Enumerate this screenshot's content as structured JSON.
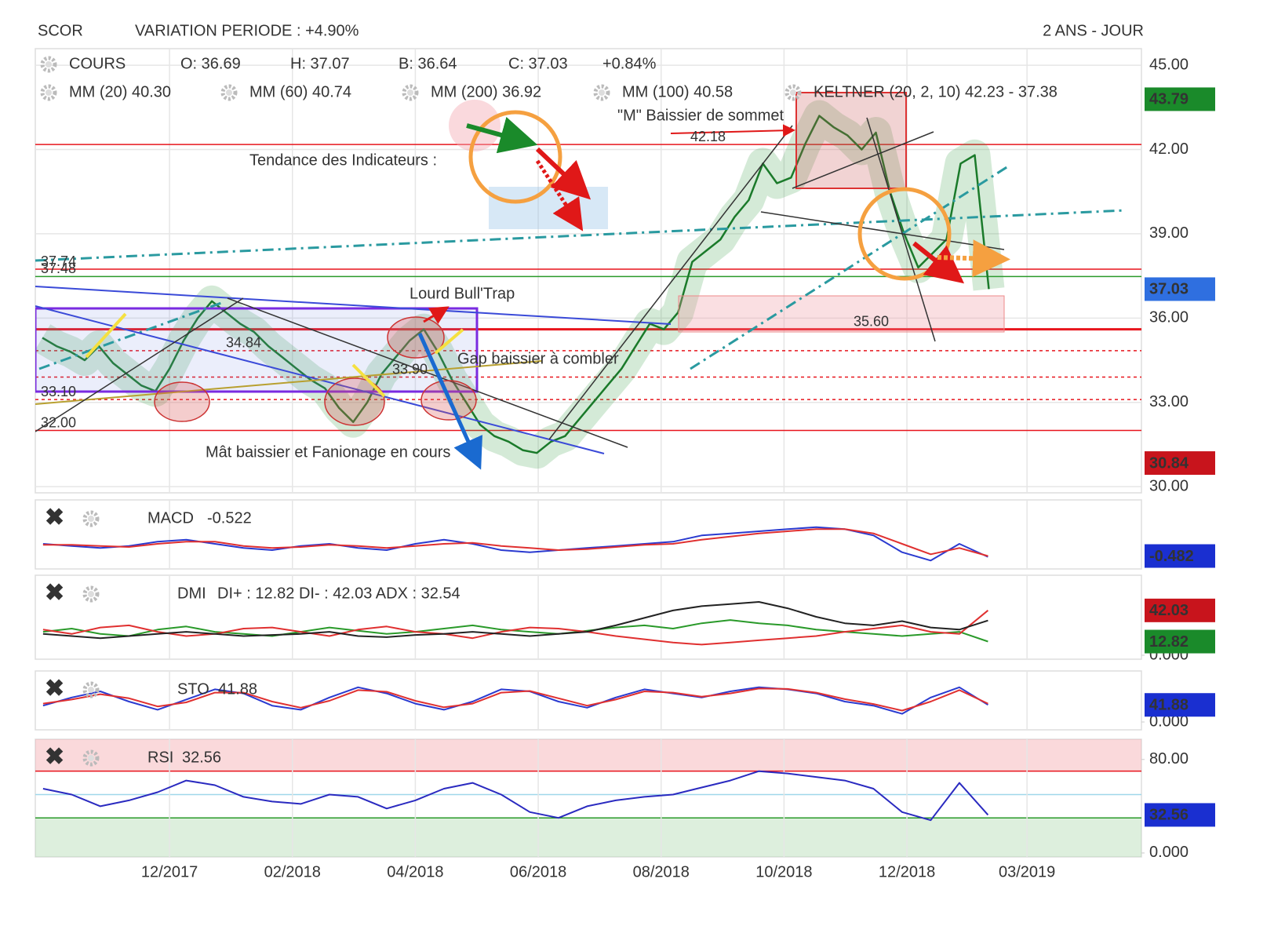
{
  "header": {
    "symbol": "SCOR",
    "variation": "VARIATION PERIODE : +4.90%",
    "period": "2 ANS - JOUR"
  },
  "chart_data": [
    {
      "type": "line",
      "info": [
        "COURS",
        "O: 36.69",
        "H: 37.07",
        "B: 36.64",
        "C: 37.03",
        "+0.84%"
      ],
      "indicators": [
        {
          "name": "MM (20) 40.30",
          "color": "#e8141c"
        },
        {
          "name": "MM (60) 40.74",
          "color": "#f0a020"
        },
        {
          "name": "MM (200) 36.92",
          "color": "#2a9a4a"
        },
        {
          "name": "MM (100) 40.58",
          "color": "#30c0d0"
        },
        {
          "name": "KELTNER (20, 2, 10) 42.23 - 37.38",
          "color": "#1a8a1a"
        }
      ],
      "xlim": [
        -0.5,
        77.8
      ],
      "xticks": [
        {
          "value": 9,
          "label": "12/2017"
        },
        {
          "value": 17.7,
          "label": "02/2018"
        },
        {
          "value": 26.4,
          "label": "04/2018"
        },
        {
          "value": 35.1,
          "label": "06/2018"
        },
        {
          "value": 43.8,
          "label": "08/2018"
        },
        {
          "value": 52.5,
          "label": "10/2018"
        },
        {
          "value": 61.2,
          "label": "12/2018"
        },
        {
          "value": 69.7,
          "label": "03/2019"
        }
      ],
      "ylim": [
        29.78,
        45.59
      ],
      "yticks": [
        {
          "value": 30,
          "label": "30.00"
        },
        {
          "value": 33,
          "label": "33.00"
        },
        {
          "value": 36,
          "label": "36.00"
        },
        {
          "value": 39,
          "label": "39.00"
        },
        {
          "value": 42,
          "label": "42.00"
        },
        {
          "value": 45,
          "label": "45.00"
        }
      ],
      "grid": true,
      "series": [
        {
          "color": "#1a7a2a",
          "values": [
            35.3,
            35.0,
            34.8,
            34.5,
            35.0,
            34.4,
            34.0,
            33.6,
            33.4,
            34.2,
            35.2,
            36.0,
            36.6,
            36.2,
            35.8,
            35.5,
            35.0,
            34.6,
            34.2,
            33.8,
            33.5,
            32.8,
            32.3,
            33.0,
            34.0,
            34.6,
            35.2,
            35.6,
            34.8,
            33.8,
            33.0,
            32.2,
            31.8,
            31.6,
            31.3,
            31.2,
            31.6,
            31.8,
            32.4,
            33.0,
            33.6,
            34.2,
            35.0,
            35.8,
            35.6,
            36.2,
            38.0,
            38.4,
            38.8,
            39.6,
            40.2,
            41.5,
            40.8,
            41.0,
            42.2,
            43.2,
            42.8,
            42.5,
            42.0,
            42.6,
            40.5,
            39.0,
            37.8,
            38.3,
            38.8,
            41.5,
            41.8,
            37.03
          ]
        }
      ],
      "levels": [
        {
          "value": 42.18,
          "label": "42.18",
          "color": "#e8141c",
          "style": "solid"
        },
        {
          "value": 37.74,
          "label": "37.74",
          "color": "#e8141c",
          "style": "solid"
        },
        {
          "value": 37.48,
          "label": "37.48",
          "color": "#2a9a2a",
          "style": "solid"
        },
        {
          "value": 35.6,
          "label": "35.60",
          "color": "#e8141c",
          "style": "thick"
        },
        {
          "value": 34.84,
          "label": "34.84",
          "color": "#e8141c",
          "style": "dotted"
        },
        {
          "value": 33.9,
          "label": "33.90",
          "color": "#e8141c",
          "style": "dotted"
        },
        {
          "value": 33.1,
          "label": "33.10",
          "color": "#e8141c",
          "style": "dotted"
        },
        {
          "value": 32,
          "label": "32.00",
          "color": "#e8141c",
          "style": "solid"
        }
      ],
      "price_tags": [
        {
          "value": 43.79,
          "color": "#1a8a2a"
        },
        {
          "value": 37.03,
          "color": "#2f6fe0"
        },
        {
          "value": 30.84,
          "color": "#c8141c"
        }
      ],
      "annotations": [
        {
          "text": "Tendance des Indicateurs :",
          "color": "#1a4a8a"
        },
        {
          "text": "\"M\" Baissier de sommet",
          "color": "#c8141c"
        },
        {
          "text": "Lourd Bull'Trap",
          "color": "#c8141c"
        },
        {
          "text": "Gap baissier à combler",
          "color": "#c8141c"
        },
        {
          "text": "Mât baissier et Fanionage en cours",
          "color": "#1a6ad0"
        }
      ]
    },
    {
      "type": "line",
      "title": "MACD",
      "readout": -0.522,
      "xlim": [
        -0.27,
        38.36
      ],
      "ylim": [
        -1.1,
        2.2
      ],
      "series": [
        {
          "color": "#2a3ad0",
          "values": [
            0.1,
            0.0,
            -0.1,
            0.0,
            0.2,
            0.3,
            0.1,
            -0.1,
            -0.2,
            0.0,
            0.1,
            -0.1,
            -0.2,
            0.1,
            0.3,
            0.1,
            -0.2,
            -0.3,
            -0.2,
            -0.1,
            0.0,
            0.1,
            0.2,
            0.5,
            0.6,
            0.7,
            0.8,
            0.9,
            0.8,
            0.5,
            -0.3,
            -0.7,
            0.1,
            -0.522
          ]
        },
        {
          "color": "#e03030",
          "values": [
            0.05,
            0.05,
            0.0,
            -0.05,
            0.1,
            0.2,
            0.2,
            0.0,
            -0.1,
            -0.05,
            0.05,
            0.0,
            -0.1,
            0.0,
            0.1,
            0.15,
            0.0,
            -0.1,
            -0.2,
            -0.15,
            -0.05,
            0.05,
            0.1,
            0.3,
            0.45,
            0.6,
            0.7,
            0.8,
            0.8,
            0.6,
            0.1,
            -0.4,
            -0.1,
            -0.482
          ]
        }
      ],
      "price_tags": [
        {
          "value": -0.482,
          "color": "#1a2fd0"
        }
      ]
    },
    {
      "type": "line",
      "title": "DMI",
      "readout": "DI+ : 12.82 DI- : 42.03 ADX : 32.54",
      "xlim": [
        -0.27,
        38.36
      ],
      "ylim": [
        -3.7,
        75
      ],
      "yticks": [
        {
          "value": 0,
          "label": "0.000"
        }
      ],
      "series": [
        {
          "color": "#2a9a2a",
          "values": [
            22,
            25,
            20,
            18,
            24,
            27,
            22,
            20,
            18,
            22,
            26,
            23,
            20,
            22,
            25,
            28,
            24,
            22,
            20,
            23,
            26,
            28,
            25,
            30,
            33,
            30,
            28,
            24,
            22,
            20,
            18,
            20,
            22,
            12.82
          ]
        },
        {
          "color": "#e03030",
          "values": [
            24,
            20,
            26,
            28,
            22,
            18,
            20,
            25,
            26,
            22,
            18,
            24,
            27,
            22,
            20,
            16,
            22,
            26,
            25,
            22,
            18,
            15,
            12,
            10,
            12,
            14,
            16,
            18,
            22,
            25,
            28,
            22,
            20,
            42.03
          ]
        },
        {
          "color": "#222222",
          "values": [
            20,
            18,
            16,
            18,
            20,
            22,
            20,
            18,
            19,
            20,
            22,
            18,
            17,
            19,
            20,
            22,
            20,
            18,
            20,
            22,
            28,
            35,
            42,
            46,
            48,
            50,
            44,
            36,
            30,
            28,
            32,
            26,
            24,
            32.54
          ]
        }
      ],
      "price_tags": [
        {
          "value": 42.03,
          "color": "#c8141c"
        },
        {
          "value": 12.82,
          "color": "#1a8a2a"
        }
      ]
    },
    {
      "type": "line",
      "title": "STO",
      "readout": 41.88,
      "xlim": [
        -0.27,
        38.36
      ],
      "ylim": [
        -19.2,
        125
      ],
      "yticks": [
        {
          "value": 0,
          "label": "0.000"
        }
      ],
      "series": [
        {
          "color": "#2a3ad0",
          "values": [
            40,
            60,
            75,
            50,
            30,
            55,
            80,
            70,
            40,
            30,
            60,
            85,
            70,
            45,
            30,
            50,
            80,
            75,
            50,
            35,
            60,
            80,
            70,
            60,
            75,
            85,
            80,
            70,
            50,
            40,
            20,
            60,
            85,
            41.88
          ]
        },
        {
          "color": "#e03030",
          "values": [
            45,
            55,
            68,
            58,
            38,
            48,
            72,
            72,
            50,
            35,
            52,
            78,
            74,
            52,
            36,
            45,
            72,
            76,
            58,
            40,
            55,
            75,
            72,
            62,
            70,
            82,
            81,
            72,
            56,
            44,
            28,
            50,
            78,
            45
          ]
        }
      ],
      "price_tags": [
        {
          "value": 41.88,
          "color": "#1a2fd0"
        }
      ]
    },
    {
      "type": "line",
      "title": "RSI",
      "readout": 32.56,
      "xlim": [
        -0.27,
        38.36
      ],
      "ylim": [
        -3.4,
        97.3
      ],
      "yticks": [
        {
          "value": 80,
          "label": "80.00"
        },
        {
          "value": 0,
          "label": "0.000"
        }
      ],
      "levels": [
        {
          "value": 70,
          "color": "#e8141c"
        },
        {
          "value": 50,
          "color": "#9fd8ea"
        },
        {
          "value": 30,
          "color": "#2a9a2a"
        }
      ],
      "series": [
        {
          "color": "#2a2ac0",
          "values": [
            55,
            50,
            40,
            45,
            52,
            62,
            58,
            48,
            44,
            42,
            50,
            48,
            38,
            45,
            55,
            60,
            50,
            35,
            30,
            40,
            45,
            48,
            50,
            56,
            62,
            70,
            68,
            65,
            62,
            55,
            35,
            28,
            60,
            32.56
          ]
        }
      ],
      "price_tags": [
        {
          "value": 32.56,
          "color": "#1a2fd0"
        }
      ]
    }
  ]
}
